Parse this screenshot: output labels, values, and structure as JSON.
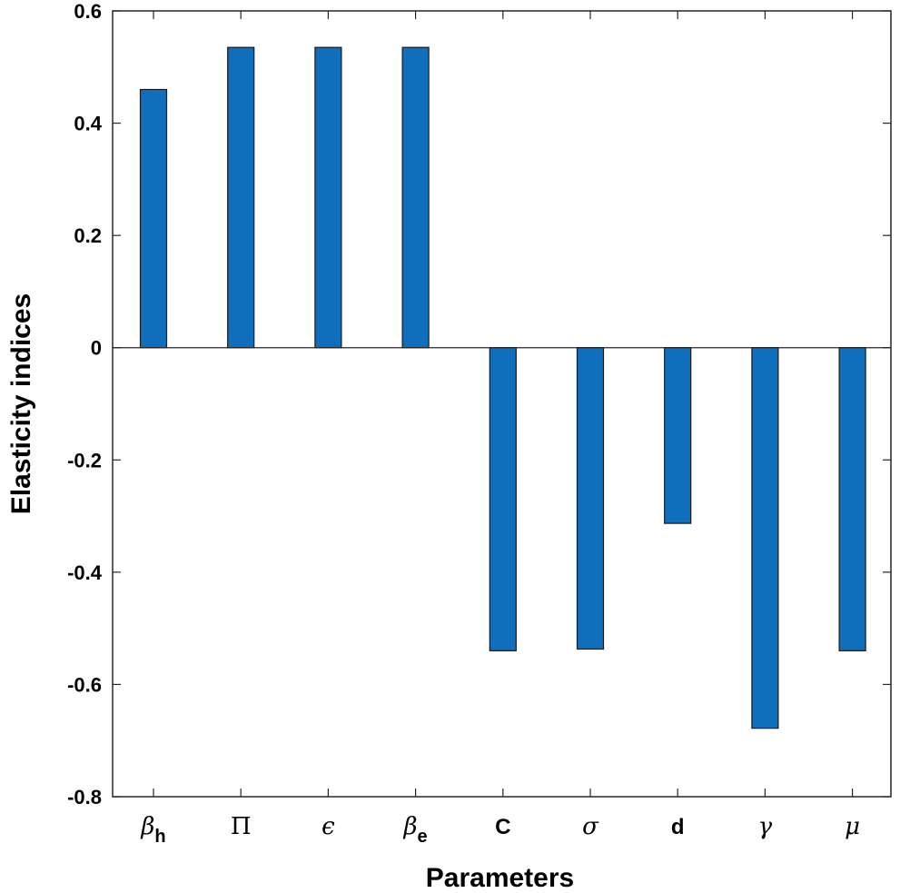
{
  "chart_data": {
    "type": "bar",
    "xlabel": "Parameters",
    "ylabel": "Elasticity indices",
    "ylim": [
      -0.8,
      0.6
    ],
    "yticks": [
      0.6,
      0.4,
      0.2,
      0,
      -0.2,
      -0.4,
      -0.6,
      -0.8
    ],
    "ytick_labels": [
      "0.6",
      "0.4",
      "0.2",
      "0",
      "-0.2",
      "-0.4",
      "-0.6",
      "-0.8"
    ],
    "categories": [
      {
        "base": "β",
        "sub": "h"
      },
      {
        "base": "Π",
        "sub": ""
      },
      {
        "base": "ϵ",
        "sub": ""
      },
      {
        "base": "β",
        "sub": "e"
      },
      {
        "base": "C",
        "sub": ""
      },
      {
        "base": "σ",
        "sub": ""
      },
      {
        "base": "d",
        "sub": ""
      },
      {
        "base": "γ",
        "sub": ""
      },
      {
        "base": "μ",
        "sub": ""
      }
    ],
    "values": [
      0.46,
      0.535,
      0.535,
      0.535,
      -0.54,
      -0.537,
      -0.313,
      -0.678,
      -0.54
    ],
    "bar_color": "#0f6fbc",
    "grid": false
  }
}
